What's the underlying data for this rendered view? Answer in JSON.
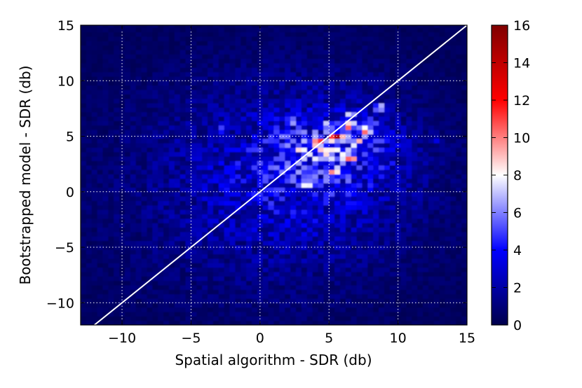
{
  "chart_data": {
    "type": "heatmap",
    "title": "",
    "xlabel": "Spatial algorithm - SDR (db)",
    "ylabel": "Bootstrapped model - SDR (db)",
    "xlim": [
      -13,
      15
    ],
    "ylim": [
      -12,
      15
    ],
    "xticks": [
      -10,
      -5,
      0,
      5,
      10,
      15
    ],
    "xtick_labels": [
      "−10",
      "−5",
      "0",
      "5",
      "10",
      "15"
    ],
    "yticks": [
      -10,
      -5,
      0,
      5,
      10,
      15
    ],
    "ytick_labels": [
      "−10",
      "−5",
      "0",
      "5",
      "10",
      "15"
    ],
    "grid": true,
    "grid_style": "dotted white",
    "colormap": "seismic",
    "colorbar": {
      "range": [
        0,
        16
      ],
      "ticks": [
        0,
        2,
        4,
        6,
        8,
        10,
        12,
        14,
        16
      ],
      "tick_labels": [
        "0",
        "2",
        "4",
        "6",
        "8",
        "10",
        "12",
        "14",
        "16"
      ],
      "colors": [
        "#00004c",
        "#0000ff",
        "#ffffff",
        "#ff0000",
        "#800000"
      ]
    },
    "reference_line": {
      "label": "y = x",
      "x": [
        -13,
        15
      ],
      "y": [
        -13,
        15
      ],
      "color": "#ffffff"
    },
    "density_clusters": [
      {
        "x": 6.0,
        "y": 4.0,
        "sx": 4.0,
        "sy": 3.0,
        "amplitude": 2.3
      },
      {
        "x": 3.0,
        "y": 2.0,
        "sx": 8.0,
        "sy": 7.0,
        "amplitude": 1.9
      },
      {
        "x": 0.0,
        "y": 0.0,
        "sx": 12.0,
        "sy": 11.0,
        "amplitude": 1.2
      }
    ],
    "hotspots": [
      {
        "x": 5.5,
        "y": 5.0,
        "value": 15
      },
      {
        "x": 6.5,
        "y": 6.0,
        "value": 14
      },
      {
        "x": 8.7,
        "y": 7.6,
        "value": 13
      },
      {
        "x": 6.1,
        "y": 4.8,
        "value": 12
      },
      {
        "x": 7.6,
        "y": 5.5,
        "value": 12
      },
      {
        "x": 4.2,
        "y": 4.5,
        "value": 11
      },
      {
        "x": 6.6,
        "y": 7.0,
        "value": 11
      },
      {
        "x": 1.8,
        "y": 5.1,
        "value": 10
      },
      {
        "x": 5.5,
        "y": 1.8,
        "value": 11
      },
      {
        "x": 6.5,
        "y": 3.0,
        "value": 10
      },
      {
        "x": 3.5,
        "y": 0.6,
        "value": 9
      },
      {
        "x": 7.0,
        "y": 4.6,
        "value": 10
      },
      {
        "x": 4.8,
        "y": 3.8,
        "value": 10
      },
      {
        "x": -2.8,
        "y": 5.6,
        "value": 8
      },
      {
        "x": 12.8,
        "y": 4.7,
        "value": 7
      },
      {
        "x": 3.0,
        "y": 3.8,
        "value": 9
      },
      {
        "x": 5.0,
        "y": 5.9,
        "value": 11
      },
      {
        "x": 8.0,
        "y": 6.3,
        "value": 9
      },
      {
        "x": 2.5,
        "y": 6.3,
        "value": 8
      }
    ]
  }
}
